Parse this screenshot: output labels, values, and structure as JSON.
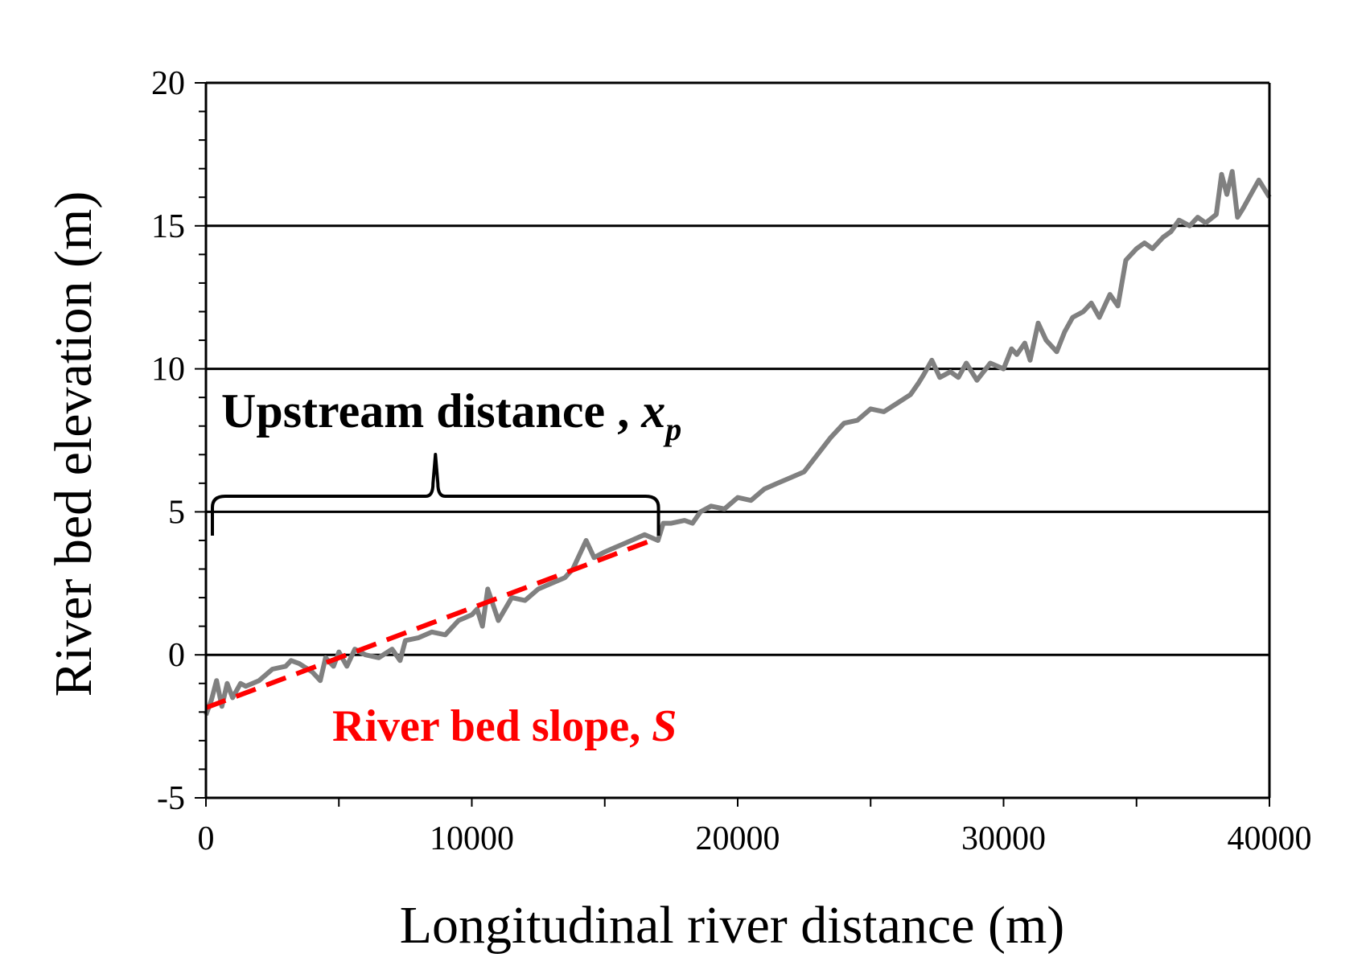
{
  "chart_data": {
    "type": "line",
    "title": "",
    "xlabel": "Longitudinal river distance (m)",
    "ylabel": "River bed elevation (m)",
    "xlim": [
      0,
      40000
    ],
    "ylim": [
      -5,
      20
    ],
    "x_ticks": [
      0,
      10000,
      20000,
      30000,
      40000
    ],
    "x_tick_labels": [
      "0",
      "10000",
      "20000",
      "30000",
      "40000"
    ],
    "y_ticks": [
      -5,
      0,
      5,
      10,
      15,
      20
    ],
    "y_tick_labels": [
      "-5",
      "0",
      "5",
      "10",
      "15",
      "20"
    ],
    "gridlines_y": [
      0,
      5,
      10,
      15
    ],
    "legend": "none",
    "colors": {
      "profile": "#808080",
      "slope": "#ff0000",
      "grid": "#000000"
    },
    "series": [
      {
        "style": "solid",
        "x": [
          0,
          200,
          400,
          600,
          800,
          1000,
          1300,
          1500,
          2000,
          2500,
          3000,
          3200,
          3500,
          4000,
          4300,
          4500,
          4800,
          5000,
          5300,
          5600,
          6000,
          6500,
          7000,
          7300,
          7500,
          8000,
          8500,
          9000,
          9500,
          10000,
          10200,
          10400,
          10600,
          11000,
          11500,
          12000,
          12500,
          13000,
          13500,
          13800,
          14000,
          14300,
          14600,
          15000,
          15500,
          16000,
          16500,
          17000,
          17200,
          17500,
          18000,
          18300,
          18600,
          19000,
          19500,
          20000,
          20500,
          21000,
          21500,
          22000,
          22500,
          23000,
          23500,
          24000,
          24500,
          25000,
          25500,
          26000,
          26500,
          26800,
          27000,
          27300,
          27600,
          28000,
          28300,
          28600,
          29000,
          29500,
          30000,
          30300,
          30500,
          30800,
          31000,
          31300,
          31600,
          32000,
          32300,
          32600,
          33000,
          33300,
          33600,
          34000,
          34300,
          34600,
          35000,
          35300,
          35600,
          36000,
          36300,
          36600,
          37000,
          37300,
          37600,
          38000,
          38200,
          38400,
          38600,
          38800,
          39000,
          39300,
          39600,
          40000
        ],
        "y": [
          -2.1,
          -1.6,
          -0.9,
          -1.8,
          -1.0,
          -1.5,
          -1.0,
          -1.1,
          -0.9,
          -0.5,
          -0.4,
          -0.2,
          -0.3,
          -0.6,
          -0.9,
          -0.1,
          -0.4,
          0.1,
          -0.4,
          0.2,
          0.0,
          -0.1,
          0.2,
          -0.2,
          0.5,
          0.6,
          0.8,
          0.7,
          1.2,
          1.4,
          1.6,
          1.0,
          2.3,
          1.2,
          2.0,
          1.9,
          2.3,
          2.5,
          2.7,
          3.0,
          3.4,
          4.0,
          3.4,
          3.6,
          3.8,
          4.0,
          4.2,
          4.0,
          4.6,
          4.6,
          4.7,
          4.6,
          5.0,
          5.2,
          5.1,
          5.5,
          5.4,
          5.8,
          6.0,
          6.2,
          6.4,
          7.0,
          7.6,
          8.1,
          8.2,
          8.6,
          8.5,
          8.8,
          9.1,
          9.5,
          9.8,
          10.3,
          9.7,
          9.9,
          9.7,
          10.2,
          9.6,
          10.2,
          10.0,
          10.7,
          10.5,
          10.9,
          10.3,
          11.6,
          11.0,
          10.6,
          11.3,
          11.8,
          12.0,
          12.3,
          11.8,
          12.6,
          12.2,
          13.8,
          14.2,
          14.4,
          14.2,
          14.6,
          14.8,
          15.2,
          15.0,
          15.3,
          15.1,
          15.4,
          16.8,
          16.1,
          16.9,
          15.3,
          15.6,
          16.1,
          16.6,
          16.0
        ]
      },
      {
        "style": "dashed",
        "x": [
          0,
          16900
        ],
        "y": [
          -1.85,
          4.05
        ]
      }
    ],
    "annotations": {
      "upstream_label": "Upstream distance , ",
      "upstream_var": "x",
      "upstream_sub": "p",
      "slope_label": "River bed slope, ",
      "slope_var": "S",
      "brace_x": [
        0,
        16900
      ]
    }
  }
}
